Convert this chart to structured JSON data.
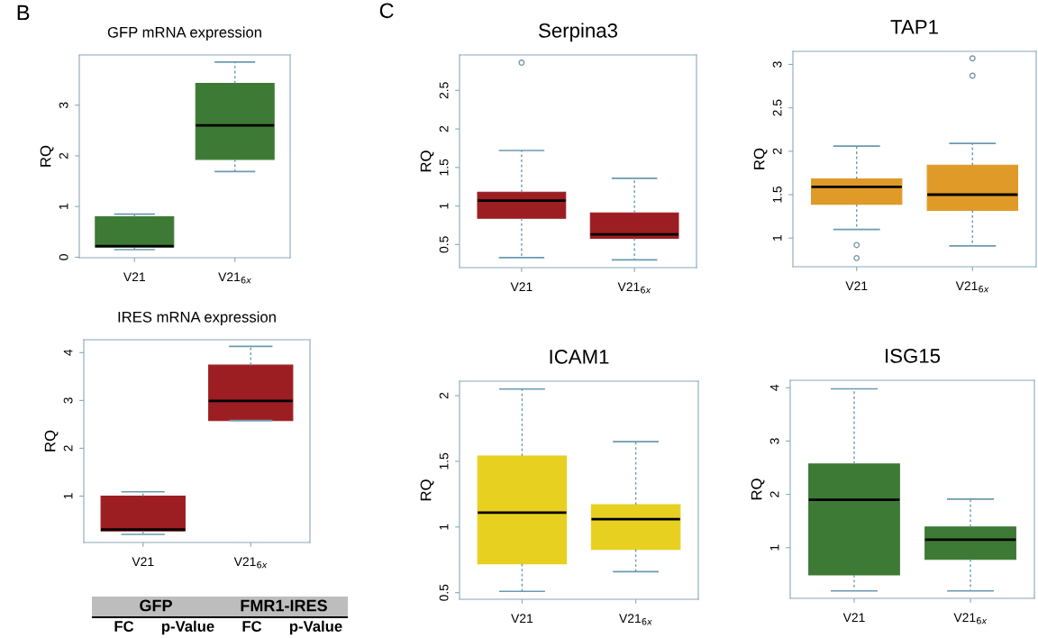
{
  "chart_data": [
    {
      "type": "box",
      "title": "GFP mRNA expression",
      "ylabel": "RQ",
      "annotations": [
        "B"
      ],
      "categories": [
        "V21",
        "V21$_{6x}$"
      ],
      "color": "#3d7a35",
      "ylim": [
        -0.01,
        3.99
      ],
      "yticks": [
        0,
        1,
        2,
        3
      ],
      "boxes": [
        {
          "low": 0.15,
          "q1": 0.2,
          "median": 0.22,
          "q3": 0.8,
          "high": 0.85
        },
        {
          "low": 1.69,
          "q1": 1.93,
          "median": 2.6,
          "q3": 3.43,
          "high": 3.85
        }
      ]
    },
    {
      "type": "box",
      "title": "IRES mRNA expression",
      "ylabel": "RQ",
      "categories": [
        "V21",
        "V21$_{6x}$"
      ],
      "color": "#9c1e22",
      "ylim": [
        0.03,
        4.27
      ],
      "yticks": [
        1,
        2,
        3,
        4
      ],
      "boxes": [
        {
          "low": 0.2,
          "q1": 0.27,
          "median": 0.3,
          "q3": 1.0,
          "high": 1.09
        },
        {
          "low": 2.58,
          "q1": 2.58,
          "median": 2.99,
          "q3": 3.74,
          "high": 4.13
        }
      ]
    },
    {
      "type": "box",
      "title": "Serpina3",
      "ylabel": "RQ",
      "annotations": [
        "C"
      ],
      "categories": [
        "V21",
        "V21$_{6x}$"
      ],
      "color": "#9c1e22",
      "ylim": [
        0.2,
        2.96
      ],
      "yticks": [
        0.5,
        1,
        1.5,
        2,
        2.5
      ],
      "boxes": [
        {
          "low": 0.33,
          "q1": 0.84,
          "median": 1.07,
          "q3": 1.18,
          "high": 1.72,
          "outliers": [
            2.86
          ]
        },
        {
          "low": 0.3,
          "q1": 0.58,
          "median": 0.63,
          "q3": 0.91,
          "high": 1.36
        }
      ]
    },
    {
      "type": "box",
      "title": "TAP1",
      "ylabel": "RQ",
      "categories": [
        "V21",
        "V21$_{6x}$"
      ],
      "color": "#e09a28",
      "ylim": [
        0.67,
        3.15
      ],
      "yticks": [
        1,
        1.5,
        2,
        2.5,
        3
      ],
      "boxes": [
        {
          "low": 1.1,
          "q1": 1.39,
          "median": 1.59,
          "q3": 1.68,
          "high": 2.06,
          "outliers": [
            0.92,
            0.77
          ]
        },
        {
          "low": 0.91,
          "q1": 1.32,
          "median": 1.5,
          "q3": 1.84,
          "high": 2.09,
          "outliers": [
            2.87,
            3.07
          ]
        }
      ]
    },
    {
      "type": "box",
      "title": "ICAM1",
      "ylabel": "RQ",
      "categories": [
        "V21",
        "V21$_{6x}$"
      ],
      "color": "#e8d020",
      "ylim": [
        0.45,
        2.11
      ],
      "yticks": [
        0.5,
        1,
        1.5,
        2
      ],
      "boxes": [
        {
          "low": 0.51,
          "q1": 0.72,
          "median": 1.11,
          "q3": 1.54,
          "high": 2.05
        },
        {
          "low": 0.66,
          "q1": 0.83,
          "median": 1.06,
          "q3": 1.17,
          "high": 1.65
        }
      ]
    },
    {
      "type": "box",
      "title": "ISG15",
      "ylabel": "RQ",
      "categories": [
        "V21",
        "V21$_{6x}$"
      ],
      "color": "#3d7a35",
      "ylim": [
        0.05,
        4.14
      ],
      "yticks": [
        1,
        2,
        3,
        4
      ],
      "boxes": [
        {
          "low": 0.19,
          "q1": 0.49,
          "median": 1.9,
          "q3": 2.57,
          "high": 3.98
        },
        {
          "low": 0.19,
          "q1": 0.78,
          "median": 1.15,
          "q3": 1.39,
          "high": 1.91
        }
      ]
    },
    {
      "type": "other",
      "annotations": [
        "GFP",
        "FMR1-IRES",
        "FC",
        "p-Value",
        "FC",
        "p-Value"
      ]
    }
  ]
}
